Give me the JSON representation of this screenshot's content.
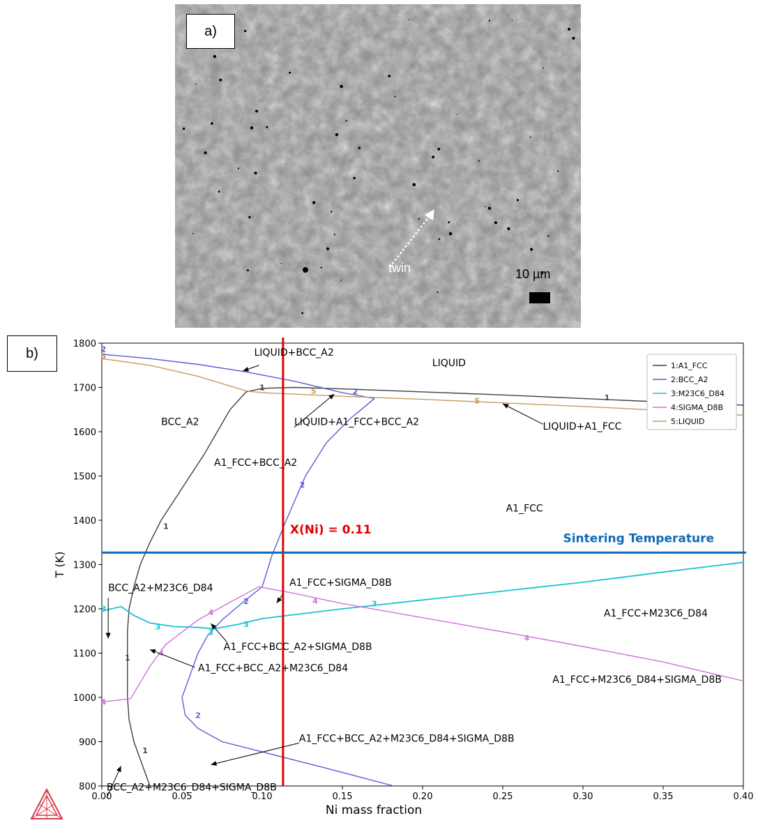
{
  "panel_a": {
    "label": "a)",
    "annotation": "twin",
    "scale_bar_label": "10 µm"
  },
  "panel_b": {
    "label": "b)",
    "marker_label": "X(Ni) = 0.11",
    "sintering_label": "Sintering Temperature"
  },
  "colors": {
    "A1_FCC": "#404040",
    "BCC_A2": "#5b5bd6",
    "M23C6_D84": "#19c1d4",
    "SIGMA_D8B": "#d070d8",
    "LIQUID": "#c89a5c",
    "marker": "#e00000",
    "sintering": "#0f6ab5"
  },
  "chart_data": {
    "type": "line",
    "xlabel": "Ni mass fraction",
    "ylabel": "T (K)",
    "xlim": [
      0.0,
      0.4
    ],
    "ylim": [
      800,
      1800
    ],
    "xticks": [
      "0.00",
      "0.05",
      "0.10",
      "0.15",
      "0.20",
      "0.25",
      "0.30",
      "0.35",
      "0.40"
    ],
    "yticks": [
      "800",
      "900",
      "1000",
      "1100",
      "1200",
      "1300",
      "1400",
      "1500",
      "1600",
      "1700",
      "1800"
    ],
    "legend": [
      "1:A1_FCC",
      "2:BCC_A2",
      "3:M23C6_D84",
      "4:SIGMA_D8B",
      "5:LIQUID"
    ],
    "legend_position": "top-right",
    "series": [
      {
        "name": "1:A1_FCC",
        "key": "A1_FCC",
        "segments": [
          [
            [
              0.03,
              800
            ],
            [
              0.025,
              850
            ],
            [
              0.02,
              900
            ],
            [
              0.017,
              950
            ],
            [
              0.016,
              1000
            ],
            [
              0.016,
              1050
            ],
            [
              0.016,
              1100
            ],
            [
              0.016,
              1150
            ],
            [
              0.017,
              1200
            ],
            [
              0.02,
              1250
            ],
            [
              0.024,
              1300
            ],
            [
              0.03,
              1350
            ],
            [
              0.037,
              1400
            ],
            [
              0.046,
              1450
            ],
            [
              0.055,
              1500
            ],
            [
              0.064,
              1550
            ],
            [
              0.072,
              1600
            ],
            [
              0.08,
              1650
            ],
            [
              0.09,
              1690
            ]
          ],
          [
            [
              0.09,
              1690
            ],
            [
              0.1,
              1698
            ],
            [
              0.12,
              1700
            ],
            [
              0.14,
              1698
            ],
            [
              0.17,
              1694
            ],
            [
              0.2,
              1690
            ],
            [
              0.25,
              1683
            ],
            [
              0.3,
              1675
            ],
            [
              0.35,
              1667
            ],
            [
              0.4,
              1660
            ]
          ]
        ],
        "labels": [
          [
            0.04,
            1387
          ],
          [
            0.016,
            1090
          ],
          [
            0.027,
            880
          ],
          [
            0.1,
            1700
          ],
          [
            0.315,
            1677
          ]
        ]
      },
      {
        "name": "2:BCC_A2",
        "key": "BCC_A2",
        "segments": [
          [
            [
              0.0,
              1775
            ],
            [
              0.03,
              1765
            ],
            [
              0.06,
              1752
            ],
            [
              0.09,
              1735
            ],
            [
              0.12,
              1714
            ],
            [
              0.15,
              1688
            ],
            [
              0.17,
              1675
            ]
          ],
          [
            [
              0.17,
              1675
            ],
            [
              0.155,
              1630
            ],
            [
              0.14,
              1575
            ],
            [
              0.127,
              1500
            ],
            [
              0.115,
              1400
            ],
            [
              0.106,
              1320
            ],
            [
              0.1,
              1250
            ]
          ],
          [
            [
              0.1,
              1250
            ],
            [
              0.088,
              1215
            ],
            [
              0.075,
              1175
            ],
            [
              0.066,
              1140
            ],
            [
              0.06,
              1100
            ],
            [
              0.055,
              1050
            ],
            [
              0.05,
              1000
            ],
            [
              0.052,
              960
            ],
            [
              0.06,
              930
            ],
            [
              0.075,
              900
            ],
            [
              0.1,
              877
            ],
            [
              0.14,
              840
            ],
            [
              0.182,
              800
            ]
          ]
        ],
        "labels": [
          [
            0.001,
            1787
          ],
          [
            0.158,
            1691
          ],
          [
            0.125,
            1480
          ],
          [
            0.09,
            1217
          ],
          [
            0.06,
            960
          ]
        ]
      },
      {
        "name": "3:M23C6_D84",
        "key": "M23C6_D84",
        "segments": [
          [
            [
              0.0,
              1195
            ],
            [
              0.012,
              1205
            ],
            [
              0.02,
              1185
            ],
            [
              0.03,
              1168
            ],
            [
              0.045,
              1160
            ],
            [
              0.06,
              1158
            ],
            [
              0.07,
              1155
            ],
            [
              0.085,
              1165
            ],
            [
              0.1,
              1178
            ],
            [
              0.15,
              1200
            ],
            [
              0.2,
              1220
            ],
            [
              0.25,
              1240
            ],
            [
              0.3,
              1260
            ],
            [
              0.35,
              1283
            ],
            [
              0.4,
              1305
            ]
          ]
        ],
        "labels": [
          [
            0.001,
            1200
          ],
          [
            0.035,
            1160
          ],
          [
            0.068,
            1147
          ],
          [
            0.09,
            1165
          ],
          [
            0.17,
            1212
          ]
        ]
      },
      {
        "name": "4:SIGMA_D8B",
        "key": "SIGMA_D8B",
        "segments": [
          [
            [
              0.0,
              990
            ],
            [
              0.018,
              997
            ],
            [
              0.03,
              1070
            ],
            [
              0.04,
              1120
            ],
            [
              0.06,
              1175
            ],
            [
              0.08,
              1215
            ],
            [
              0.098,
              1250
            ],
            [
              0.12,
              1235
            ],
            [
              0.15,
              1212
            ],
            [
              0.2,
              1180
            ],
            [
              0.25,
              1148
            ],
            [
              0.3,
              1115
            ],
            [
              0.35,
              1080
            ],
            [
              0.4,
              1037
            ]
          ]
        ],
        "labels": [
          [
            0.001,
            990
          ],
          [
            0.037,
            1100
          ],
          [
            0.068,
            1192
          ],
          [
            0.133,
            1218
          ],
          [
            0.265,
            1135
          ]
        ]
      },
      {
        "name": "5:LIQUID",
        "key": "LIQUID",
        "segments": [
          [
            [
              0.0,
              1765
            ],
            [
              0.03,
              1750
            ],
            [
              0.06,
              1725
            ],
            [
              0.09,
              1692
            ],
            [
              0.1,
              1688
            ],
            [
              0.15,
              1680
            ],
            [
              0.2,
              1673
            ],
            [
              0.25,
              1665
            ],
            [
              0.3,
              1657
            ],
            [
              0.35,
              1648
            ],
            [
              0.4,
              1637
            ]
          ]
        ],
        "labels": [
          [
            0.001,
            1771
          ],
          [
            0.132,
            1692
          ],
          [
            0.234,
            1670
          ]
        ]
      }
    ],
    "vertical_marker": {
      "x": 0.113,
      "label": "X(Ni) = 0.11"
    },
    "horizontal_marker": {
      "y": 1327,
      "label": "Sintering Temperature"
    },
    "regions": [
      "LIQUID",
      "BCC_A2",
      "A1_FCC+BCC_A2",
      "A1_FCC",
      "A1_FCC+M23C6_D84",
      "A1_FCC+M23C6_D84+SIGMA_D8B"
    ],
    "annotations": [
      "LIQUID+BCC_A2",
      "LIQUID+A1_FCC+BCC_A2",
      "LIQUID+A1_FCC",
      "BCC_A2+M23C6_D84",
      "A1_FCC+SIGMA_D8B",
      "A1_FCC+BCC_A2+SIGMA_D8B",
      "A1_FCC+BCC_A2+M23C6_D84",
      "A1_FCC+BCC_A2+M23C6_D84+SIGMA_D8B",
      "BCC_A2+M23C6_D84+SIGMA_D8B"
    ]
  }
}
